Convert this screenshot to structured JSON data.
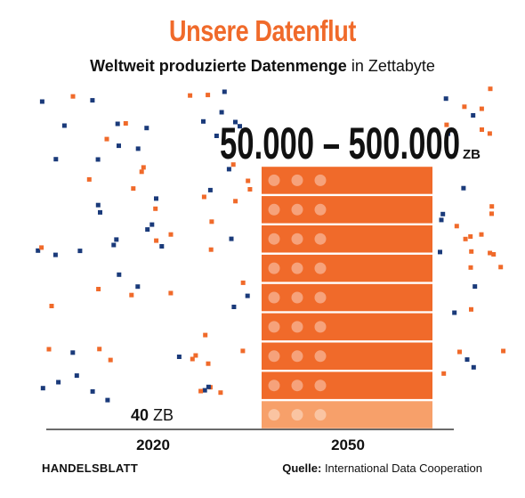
{
  "header": {
    "title": "Unsere Datenflut",
    "subtitle_bold": "Weltweit produzierte Datenmenge",
    "subtitle_rest": "in Zettabyte"
  },
  "footer": {
    "brand": "HANDELSBLATT",
    "source_label": "Quelle:",
    "source_text": "International Data Cooperation"
  },
  "colors": {
    "accent": "#f06a2a",
    "accent_light": "#f7a06a",
    "navy": "#1a3a7a"
  },
  "chart_data": {
    "type": "bar",
    "categories": [
      "2020",
      "2050"
    ],
    "series": [
      {
        "values": [
          40,
          50000
        ]
      },
      {
        "values": [
          40,
          500000
        ]
      }
    ],
    "value_labels": [
      {
        "category": "2020",
        "number": "40",
        "unit": "ZB"
      },
      {
        "category": "2050",
        "number": "50.000 – 500.000",
        "unit": "ZB"
      }
    ],
    "rack_units": 9,
    "dots_per_unit": 3
  }
}
